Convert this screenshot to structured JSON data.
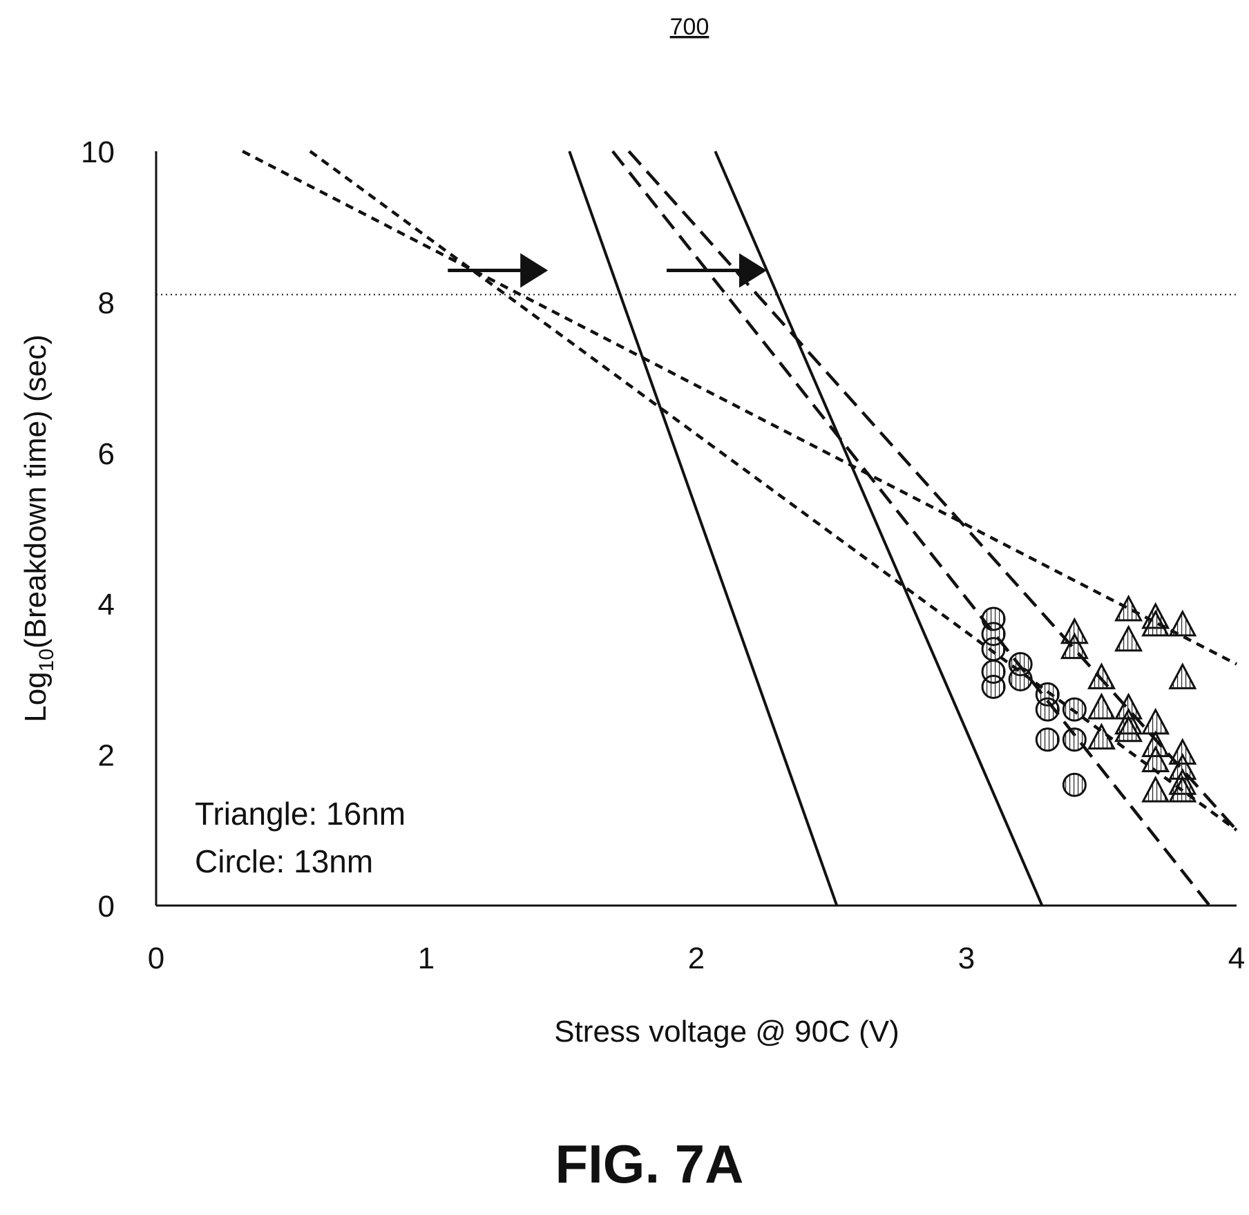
{
  "figure": {
    "reference_numeral": "700",
    "caption": "FIG. 7A"
  },
  "chart_data": {
    "type": "scatter",
    "xlabel": "Stress voltage @ 90C (V)",
    "ylabel": {
      "prefix": "Log",
      "subscript": "10",
      "suffix": "(Breakdown time) (sec)"
    },
    "xlim": [
      0,
      4
    ],
    "ylim": [
      0,
      10
    ],
    "xticks": [
      "0",
      "1",
      "2",
      "3",
      "4"
    ],
    "yticks": [
      "0",
      "2",
      "4",
      "6",
      "8",
      "10"
    ],
    "legend_notes": [
      "Triangle: 16nm",
      "Circle: 13nm"
    ],
    "reference_line": {
      "style": "dotted",
      "y": 8.1
    },
    "series": [
      {
        "marker": "triangle",
        "points": [
          [
            3.4,
            3.6
          ],
          [
            3.4,
            3.4
          ],
          [
            3.5,
            3.0
          ],
          [
            3.5,
            2.6
          ],
          [
            3.5,
            2.2
          ],
          [
            3.6,
            3.9
          ],
          [
            3.6,
            3.5
          ],
          [
            3.6,
            2.6
          ],
          [
            3.6,
            2.4
          ],
          [
            3.6,
            2.3
          ],
          [
            3.7,
            3.8
          ],
          [
            3.7,
            3.7
          ],
          [
            3.7,
            2.4
          ],
          [
            3.7,
            2.1
          ],
          [
            3.7,
            1.9
          ],
          [
            3.7,
            1.5
          ],
          [
            3.8,
            3.7
          ],
          [
            3.8,
            3.0
          ],
          [
            3.8,
            2.0
          ],
          [
            3.8,
            1.8
          ],
          [
            3.8,
            1.6
          ],
          [
            3.8,
            1.5
          ]
        ]
      },
      {
        "marker": "circle",
        "points": [
          [
            3.1,
            3.8
          ],
          [
            3.1,
            3.6
          ],
          [
            3.1,
            3.4
          ],
          [
            3.1,
            3.1
          ],
          [
            3.1,
            2.9
          ],
          [
            3.2,
            3.2
          ],
          [
            3.2,
            3.0
          ],
          [
            3.3,
            2.8
          ],
          [
            3.3,
            2.6
          ],
          [
            3.3,
            2.2
          ],
          [
            3.4,
            2.6
          ],
          [
            3.4,
            2.2
          ],
          [
            3.4,
            1.6
          ]
        ]
      }
    ],
    "fit_lines": [
      {
        "style": "solid",
        "points": [
          [
            1.53,
            10
          ],
          [
            2.52,
            0
          ]
        ]
      },
      {
        "style": "solid",
        "points": [
          [
            2.07,
            10
          ],
          [
            3.28,
            0
          ]
        ]
      },
      {
        "style": "short-dash",
        "points": [
          [
            0.32,
            10
          ],
          [
            4.0,
            3.2
          ]
        ]
      },
      {
        "style": "short-dash",
        "points": [
          [
            0.57,
            10
          ],
          [
            4.0,
            1.0
          ]
        ]
      },
      {
        "style": "long-dash",
        "points": [
          [
            1.69,
            10
          ],
          [
            3.9,
            0
          ]
        ]
      },
      {
        "style": "long-dash",
        "points": [
          [
            1.75,
            10
          ],
          [
            4.0,
            1.0
          ]
        ]
      }
    ],
    "arrows": [
      {
        "direction": "right",
        "from": [
          1.08,
          8.42
        ],
        "to": [
          1.42,
          8.42
        ]
      },
      {
        "direction": "right",
        "from": [
          1.89,
          8.42
        ],
        "to": [
          2.23,
          8.42
        ]
      }
    ]
  }
}
